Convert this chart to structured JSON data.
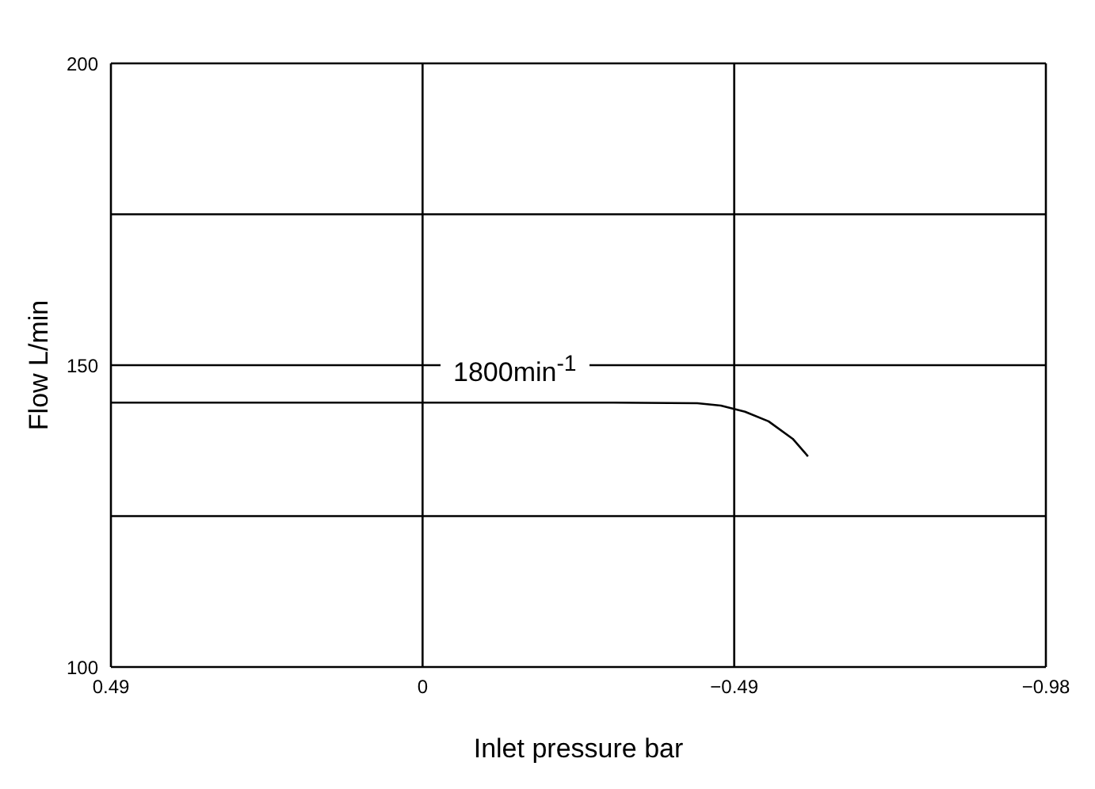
{
  "chart_data": {
    "type": "line",
    "xlabel": "Inlet pressure bar",
    "ylabel": "Flow L/min",
    "x": [
      0.49,
      0.2,
      -0.1,
      -0.3,
      -0.432,
      -0.469,
      -0.507,
      -0.544,
      -0.582,
      -0.606
    ],
    "series": [
      {
        "color": "#000000",
        "values": [
          143.8,
          143.8,
          143.8,
          143.8,
          143.7,
          143.3,
          142.3,
          140.7,
          137.8,
          134.9
        ]
      }
    ],
    "xlim": [
      0.49,
      -0.98
    ],
    "xticks": [
      {
        "value": 0.49,
        "label": "0.49"
      },
      0,
      {
        "value": -0.49,
        "label": "−0.49"
      },
      {
        "value": -0.98,
        "label": "−0.98"
      }
    ],
    "ylim": [
      100,
      200
    ],
    "yticks": [
      100,
      {
        "value": 125,
        "label": null
      },
      150,
      {
        "value": 175,
        "label": null
      },
      200
    ],
    "grid": true,
    "marker": "none",
    "line_style": "solid",
    "annotations": [
      "1800min$^{-1}$"
    ]
  }
}
